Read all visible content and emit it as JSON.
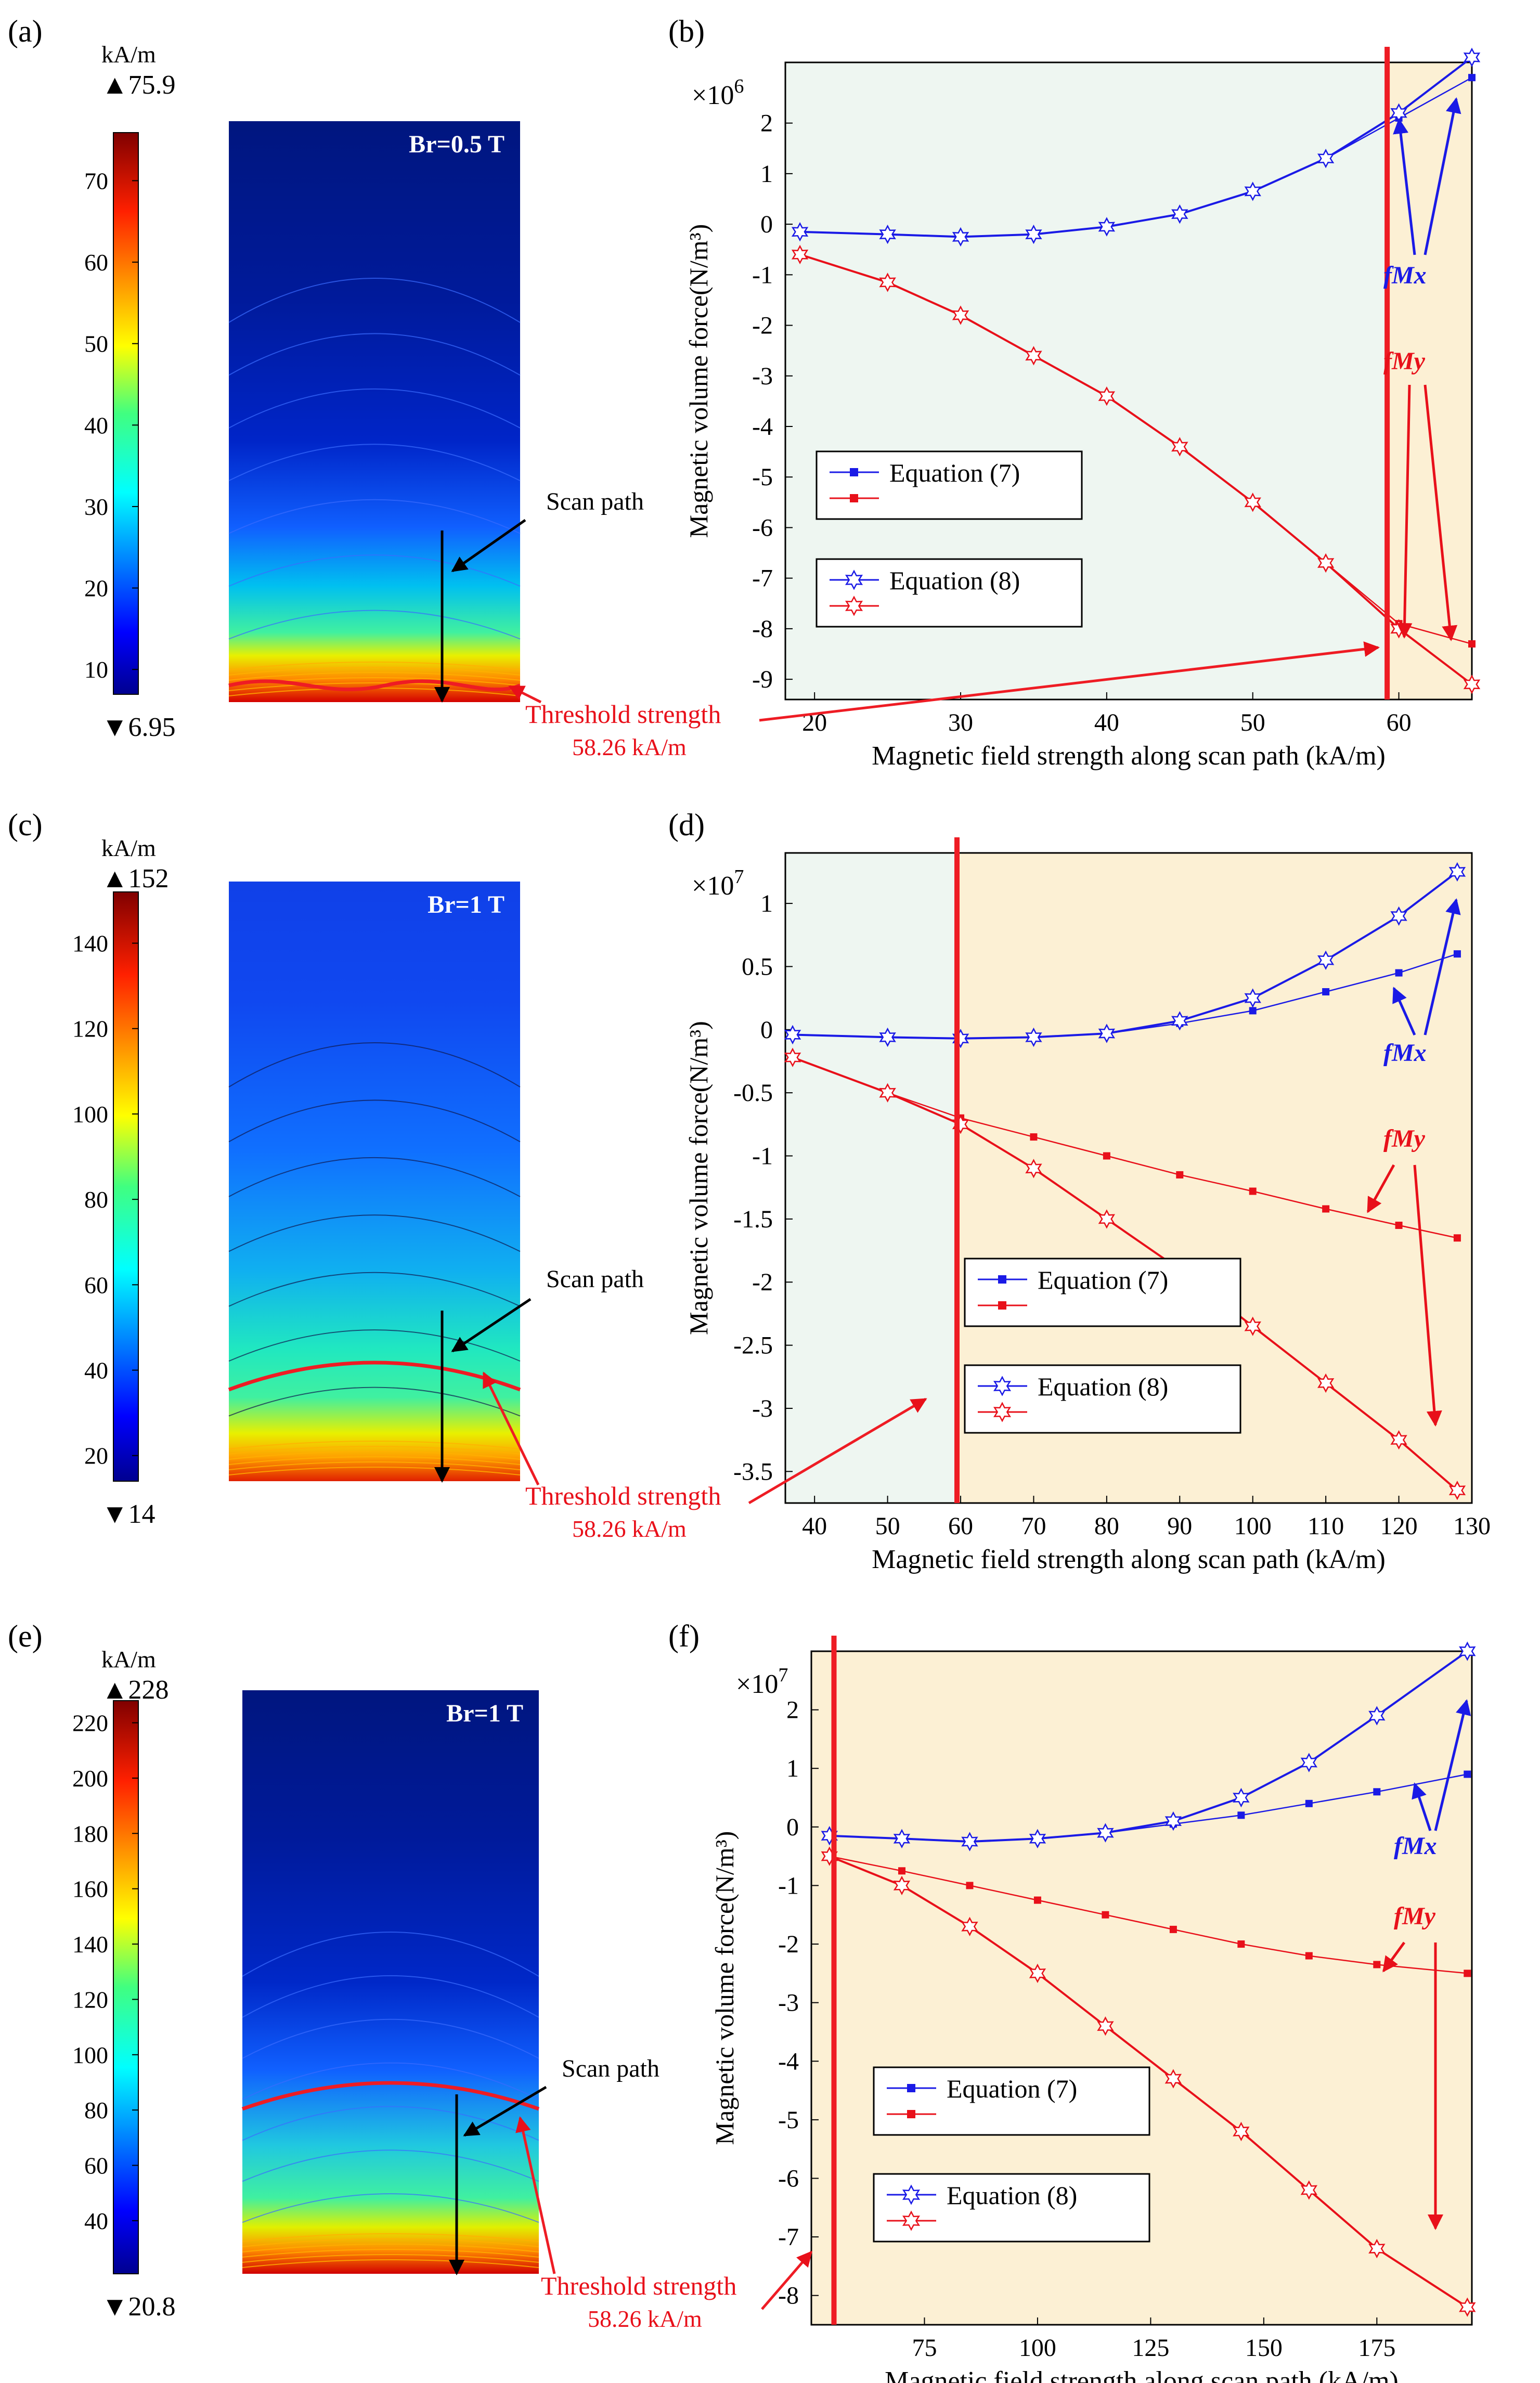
{
  "colors": {
    "blue": "#1a1ae6",
    "red": "#e8101a",
    "threshold": "#ee1c24",
    "green_bg": "#eef6f1",
    "yellow_bg": "#fcf0d4",
    "text_red": "#e8101a"
  },
  "common": {
    "scan_path_label": "Scan path",
    "threshold_label": "Threshold strength",
    "threshold_value_label": "58.26 kA/m",
    "unit_label": "kA/m",
    "legend_eq7": "Equation (7)",
    "legend_eq8": "Equation (8)",
    "ylabel": "Magnetic volume force(N/m³)",
    "xlabel": "Magnetic field strength along scan path  (kA/m)",
    "fmx_label": "fMx",
    "fmy_label": "fMy"
  },
  "field_maps": [
    {
      "panel_label": "(a)",
      "br_label": "Br=0.5 T",
      "max_label": "▲75.9",
      "min_label": "▼6.95",
      "vmin": 6.95,
      "vmax": 75.9,
      "ticks": [
        10,
        20,
        30,
        40,
        50,
        60,
        70
      ],
      "threshold_field": 58.26
    },
    {
      "panel_label": "(c)",
      "br_label": "Br=1 T",
      "max_label": "▲152",
      "min_label": "▼14",
      "vmin": 14,
      "vmax": 152,
      "ticks": [
        20,
        40,
        60,
        80,
        100,
        120,
        140
      ],
      "threshold_field": 58.26
    },
    {
      "panel_label": "(e)",
      "br_label": "Br=1 T",
      "max_label": "▲228",
      "min_label": "▼20.8",
      "vmin": 20.8,
      "vmax": 228,
      "ticks": [
        40,
        60,
        80,
        100,
        120,
        140,
        160,
        180,
        200,
        220
      ],
      "threshold_field": 58.26
    }
  ],
  "chart_data": [
    {
      "panel_label": "(b)",
      "type": "line",
      "title": "",
      "xlabel": "Magnetic field strength along scan path  (kA/m)",
      "ylabel": "Magnetic volume force(N/m³)",
      "multiplier_base": "×10",
      "multiplier_exp": "6",
      "xlim": [
        18,
        65
      ],
      "ylim": [
        -9.4,
        3.2
      ],
      "xticks": [
        20,
        30,
        40,
        50,
        60
      ],
      "yticks": [
        2,
        1,
        0,
        -1,
        -2,
        -3,
        -4,
        -5,
        -6,
        -7,
        -8,
        -9
      ],
      "threshold_x": 59.2,
      "series": [
        {
          "name": "fMx Equation (7)",
          "color": "blue",
          "marker": "square",
          "x": [
            19,
            25,
            30,
            35,
            40,
            45,
            50,
            55,
            60,
            65
          ],
          "y": [
            -0.15,
            -0.2,
            -0.25,
            -0.2,
            -0.05,
            0.2,
            0.65,
            1.3,
            2.1,
            2.9
          ]
        },
        {
          "name": "fMy Equation (7)",
          "color": "red",
          "marker": "square",
          "x": [
            19,
            25,
            30,
            35,
            40,
            45,
            50,
            55,
            60,
            65
          ],
          "y": [
            -0.6,
            -1.15,
            -1.8,
            -2.6,
            -3.4,
            -4.4,
            -5.5,
            -6.7,
            -7.9,
            -8.3
          ]
        },
        {
          "name": "fMx Equation (8)",
          "color": "blue",
          "marker": "star",
          "x": [
            19,
            25,
            30,
            35,
            40,
            45,
            50,
            55,
            60,
            65
          ],
          "y": [
            -0.15,
            -0.2,
            -0.25,
            -0.2,
            -0.05,
            0.2,
            0.65,
            1.3,
            2.2,
            3.3
          ]
        },
        {
          "name": "fMy Equation (8)",
          "color": "red",
          "marker": "star",
          "x": [
            19,
            25,
            30,
            35,
            40,
            45,
            50,
            55,
            60,
            65
          ],
          "y": [
            -0.6,
            -1.15,
            -1.8,
            -2.6,
            -3.4,
            -4.4,
            -5.5,
            -6.7,
            -8.0,
            -9.1
          ]
        }
      ]
    },
    {
      "panel_label": "(d)",
      "type": "line",
      "title": "",
      "xlabel": "Magnetic field strength along scan path  (kA/m)",
      "ylabel": "Magnetic volume force(N/m³)",
      "multiplier_base": "×10",
      "multiplier_exp": "7",
      "xlim": [
        36,
        130
      ],
      "ylim": [
        -3.75,
        1.4
      ],
      "xticks": [
        40,
        50,
        60,
        70,
        80,
        90,
        100,
        110,
        120,
        130
      ],
      "yticks": [
        1,
        0.5,
        0,
        -0.5,
        -1,
        -1.5,
        -2,
        -2.5,
        -3,
        -3.5
      ],
      "threshold_x": 59.5,
      "series": [
        {
          "name": "fMx Equation (7)",
          "color": "blue",
          "marker": "square",
          "x": [
            37,
            50,
            60,
            70,
            80,
            90,
            100,
            110,
            120,
            128
          ],
          "y": [
            -0.04,
            -0.06,
            -0.07,
            -0.06,
            -0.03,
            0.05,
            0.15,
            0.3,
            0.45,
            0.6
          ]
        },
        {
          "name": "fMy Equation (7)",
          "color": "red",
          "marker": "square",
          "x": [
            37,
            50,
            60,
            70,
            80,
            90,
            100,
            110,
            120,
            128
          ],
          "y": [
            -0.22,
            -0.5,
            -0.7,
            -0.85,
            -1.0,
            -1.15,
            -1.28,
            -1.42,
            -1.55,
            -1.65
          ]
        },
        {
          "name": "fMx Equation (8)",
          "color": "blue",
          "marker": "star",
          "x": [
            37,
            50,
            60,
            70,
            80,
            90,
            100,
            110,
            120,
            128
          ],
          "y": [
            -0.04,
            -0.06,
            -0.07,
            -0.06,
            -0.03,
            0.07,
            0.25,
            0.55,
            0.9,
            1.25
          ]
        },
        {
          "name": "fMy Equation (8)",
          "color": "red",
          "marker": "star",
          "x": [
            37,
            50,
            60,
            70,
            80,
            90,
            100,
            110,
            120,
            128
          ],
          "y": [
            -0.22,
            -0.5,
            -0.75,
            -1.1,
            -1.5,
            -1.9,
            -2.35,
            -2.8,
            -3.25,
            -3.65
          ]
        }
      ]
    },
    {
      "panel_label": "(f)",
      "type": "line",
      "title": "",
      "xlabel": "Magnetic field strength along scan path  (kA/m)",
      "ylabel": "Magnetic volume force(N/m³)",
      "multiplier_base": "×10",
      "multiplier_exp": "7",
      "xlim": [
        50,
        196
      ],
      "ylim": [
        -8.5,
        3.0
      ],
      "xticks": [
        75,
        100,
        125,
        150,
        175
      ],
      "yticks": [
        2,
        1,
        0,
        -1,
        -2,
        -3,
        -4,
        -5,
        -6,
        -7,
        -8
      ],
      "threshold_x": 55,
      "series": [
        {
          "name": "fMx Equation (7)",
          "color": "blue",
          "marker": "square",
          "x": [
            54,
            70,
            85,
            100,
            115,
            130,
            145,
            160,
            175,
            195
          ],
          "y": [
            -0.15,
            -0.2,
            -0.25,
            -0.2,
            -0.1,
            0.05,
            0.2,
            0.4,
            0.6,
            0.9
          ]
        },
        {
          "name": "fMy Equation (7)",
          "color": "red",
          "marker": "square",
          "x": [
            54,
            70,
            85,
            100,
            115,
            130,
            145,
            160,
            175,
            195
          ],
          "y": [
            -0.5,
            -0.75,
            -1.0,
            -1.25,
            -1.5,
            -1.75,
            -2.0,
            -2.2,
            -2.35,
            -2.5
          ]
        },
        {
          "name": "fMx Equation (8)",
          "color": "blue",
          "marker": "star",
          "x": [
            54,
            70,
            85,
            100,
            115,
            130,
            145,
            160,
            175,
            195
          ],
          "y": [
            -0.15,
            -0.2,
            -0.25,
            -0.2,
            -0.1,
            0.1,
            0.5,
            1.1,
            1.9,
            3.0
          ]
        },
        {
          "name": "fMy Equation (8)",
          "color": "red",
          "marker": "star",
          "x": [
            54,
            70,
            85,
            100,
            115,
            130,
            145,
            160,
            175,
            195
          ],
          "y": [
            -0.5,
            -1.0,
            -1.7,
            -2.5,
            -3.4,
            -4.3,
            -5.2,
            -6.2,
            -7.2,
            -8.2
          ]
        }
      ]
    }
  ]
}
